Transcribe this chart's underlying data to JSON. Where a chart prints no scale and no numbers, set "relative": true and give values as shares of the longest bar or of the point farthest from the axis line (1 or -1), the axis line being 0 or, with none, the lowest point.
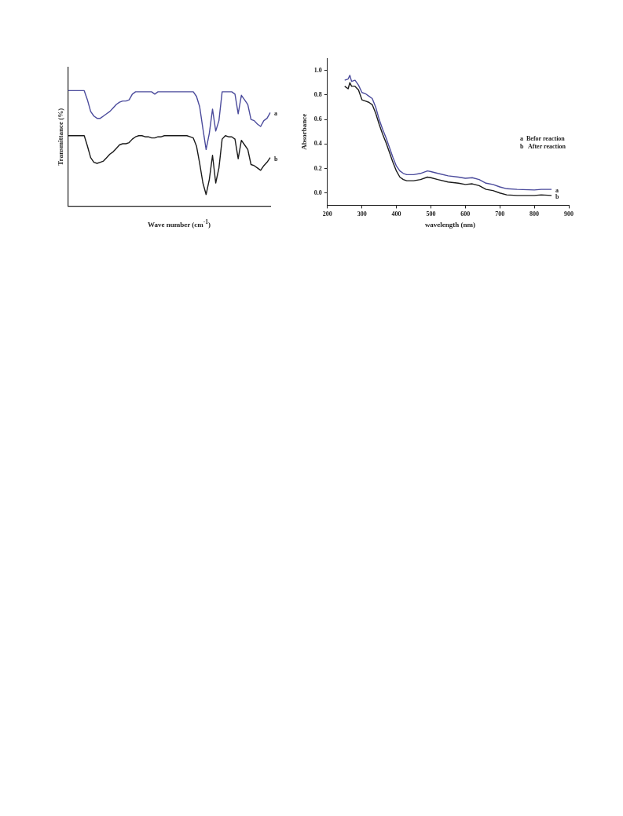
{
  "chart_data": [
    {
      "type": "line",
      "relative": true,
      "xlabel": "Wave number (cm$^{-1}$)",
      "ylabel": "Transmittance (%)",
      "grid": false,
      "legend": false,
      "marker": "none",
      "line_style": "solid",
      "categories": [
        null,
        null,
        null,
        null,
        null,
        null,
        null,
        null,
        null,
        null,
        null,
        null,
        null,
        null,
        null,
        null,
        null,
        null,
        null,
        null,
        null,
        null,
        null,
        null,
        null,
        null,
        null,
        null,
        null,
        null,
        null,
        null,
        null,
        null,
        null,
        null,
        null,
        null,
        null,
        null,
        null,
        null,
        null,
        null,
        null,
        null,
        null,
        null,
        null,
        null,
        null,
        null,
        null,
        null,
        null,
        null,
        null,
        null,
        null,
        null,
        null,
        null,
        null,
        null
      ],
      "series": [
        {
          "name": "a",
          "color": "#4b4b9c",
          "values": [
            1.0,
            1.0,
            1.0,
            1.0,
            1.0,
            1.0,
            0.92,
            0.82,
            0.78,
            0.76,
            0.76,
            0.78,
            0.8,
            0.82,
            0.85,
            0.88,
            0.9,
            0.91,
            0.91,
            0.92,
            0.97,
            0.99,
            0.99,
            0.99,
            0.99,
            0.99,
            0.99,
            0.97,
            0.99,
            0.99,
            0.99,
            0.99,
            0.99,
            0.99,
            0.99,
            0.99,
            0.99,
            0.99,
            0.99,
            0.99,
            0.95,
            0.86,
            0.67,
            0.49,
            0.63,
            0.84,
            0.65,
            0.74,
            0.99,
            0.99,
            0.99,
            0.99,
            0.97,
            0.8,
            0.96,
            0.92,
            0.88,
            0.75,
            0.74,
            0.71,
            0.69,
            0.74,
            0.76,
            0.81
          ]
        },
        {
          "name": "b",
          "color": "#1a1a1a",
          "values": [
            0.61,
            0.61,
            0.61,
            0.61,
            0.61,
            0.61,
            0.52,
            0.42,
            0.38,
            0.37,
            0.38,
            0.39,
            0.42,
            0.45,
            0.47,
            0.5,
            0.53,
            0.54,
            0.54,
            0.55,
            0.58,
            0.6,
            0.61,
            0.61,
            0.6,
            0.6,
            0.59,
            0.59,
            0.6,
            0.6,
            0.61,
            0.61,
            0.61,
            0.61,
            0.61,
            0.61,
            0.61,
            0.61,
            0.6,
            0.59,
            0.52,
            0.37,
            0.2,
            0.1,
            0.23,
            0.44,
            0.2,
            0.33,
            0.58,
            0.61,
            0.6,
            0.6,
            0.58,
            0.41,
            0.57,
            0.53,
            0.49,
            0.36,
            0.35,
            0.33,
            0.31,
            0.35,
            0.38,
            0.42
          ]
        }
      ]
    },
    {
      "type": "line",
      "xlabel": "wavelength (nm)",
      "ylabel": "Absorbance",
      "grid": false,
      "legend": false,
      "marker": "none",
      "line_style": "solid",
      "xlim": [
        200,
        900
      ],
      "xticks": [
        200,
        300,
        400,
        500,
        600,
        700,
        800,
        900
      ],
      "ylim": [
        -0.1,
        1.1
      ],
      "yticks": [
        {
          "value": 0,
          "label": "0.0"
        },
        0.2,
        0.4,
        0.6,
        0.8,
        {
          "value": 1,
          "label": "1.0"
        }
      ],
      "x": [
        250,
        260,
        265,
        270,
        280,
        290,
        300,
        310,
        320,
        330,
        340,
        350,
        360,
        370,
        380,
        390,
        400,
        410,
        420,
        430,
        450,
        470,
        490,
        500,
        520,
        550,
        580,
        600,
        620,
        640,
        660,
        680,
        700,
        720,
        750,
        800,
        820,
        850
      ],
      "annotations": [
        "a  Befor reaction",
        "b   After reaction"
      ],
      "series": [
        {
          "name": "a",
          "color": "#4b4b9c",
          "values": [
            0.92,
            0.93,
            0.96,
            0.91,
            0.92,
            0.88,
            0.82,
            0.81,
            0.79,
            0.77,
            0.7,
            0.6,
            0.52,
            0.45,
            0.37,
            0.29,
            0.22,
            0.18,
            0.16,
            0.15,
            0.15,
            0.16,
            0.18,
            0.175,
            0.16,
            0.14,
            0.13,
            0.12,
            0.125,
            0.11,
            0.08,
            0.07,
            0.05,
            0.035,
            0.03,
            0.025,
            0.03,
            0.03
          ]
        },
        {
          "name": "b",
          "color": "#1a1a1a",
          "values": [
            0.87,
            0.85,
            0.9,
            0.87,
            0.87,
            0.84,
            0.76,
            0.75,
            0.74,
            0.72,
            0.65,
            0.56,
            0.48,
            0.41,
            0.33,
            0.25,
            0.18,
            0.13,
            0.11,
            0.1,
            0.1,
            0.11,
            0.13,
            0.125,
            0.11,
            0.09,
            0.08,
            0.07,
            0.075,
            0.06,
            0.03,
            0.02,
            0.0,
            -0.015,
            -0.02,
            -0.02,
            -0.015,
            -0.02
          ]
        }
      ]
    }
  ]
}
